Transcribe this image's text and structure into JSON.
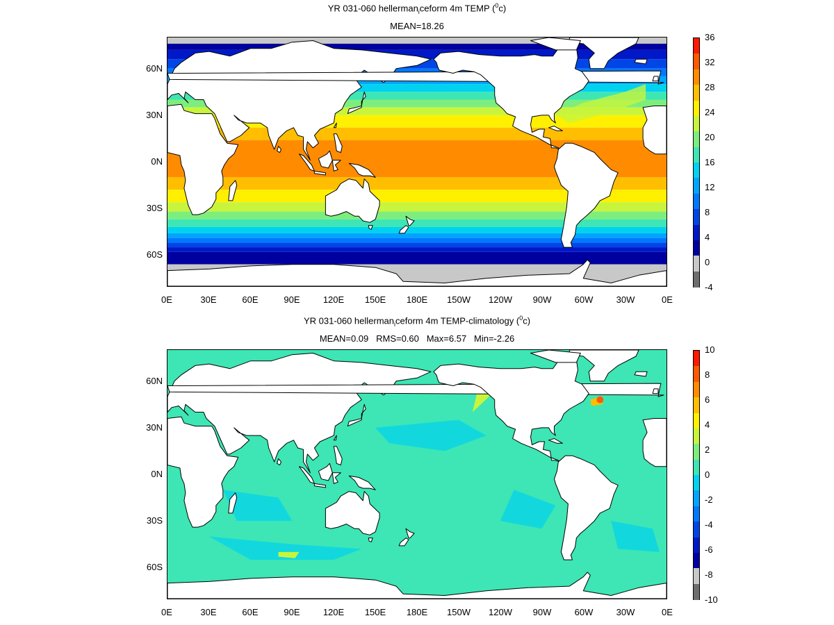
{
  "panels": [
    {
      "id": "top",
      "title_main": "YR 031-060 hellerman",
      "title_sub": "i",
      "title_rest": "ceform 4m TEMP (",
      "title_sup": "0",
      "title_unit": "c)",
      "subtitle": "MEAN=18.26",
      "colorbar": {
        "labels": [
          "36",
          "32",
          "28",
          "24",
          "20",
          "16",
          "12",
          "8",
          "4",
          "0",
          "-4"
        ],
        "colors": [
          "#ff1a00",
          "#ff5a00",
          "#ff8c00",
          "#ffbe00",
          "#fff000",
          "#c8f53c",
          "#7dee7d",
          "#3de6b4",
          "#00d2f0",
          "#00a5ff",
          "#0078ff",
          "#0046e6",
          "#0019c8",
          "#0000a0",
          "#c8c8c8",
          "#6e6e6e"
        ]
      },
      "map": {
        "ocean_field": "sst",
        "grey_ice_north": true,
        "grey_ice_south": true
      }
    },
    {
      "id": "bottom",
      "title_main": "YR 031-060 hellerman",
      "title_sub": "i",
      "title_rest": "ceform 4m TEMP-climatology (",
      "title_sup": "0",
      "title_unit": "c)",
      "subtitle": "MEAN=0.09   RMS=0.60   Max=6.57   Min=-2.26",
      "colorbar": {
        "labels": [
          "10",
          "8",
          "6",
          "4",
          "2",
          "0",
          "-2",
          "-4",
          "-6",
          "-8",
          "-10"
        ],
        "colors": [
          "#ff1a00",
          "#ff5a00",
          "#ff8c00",
          "#ffbe00",
          "#fff000",
          "#c8f53c",
          "#7dee7d",
          "#3de6b4",
          "#00d2f0",
          "#00a5ff",
          "#0078ff",
          "#0046e6",
          "#0019c8",
          "#0000a0",
          "#c8c8c8",
          "#6e6e6e"
        ]
      },
      "map": {
        "ocean_field": "anomaly",
        "grey_ice_north": false,
        "grey_ice_south": false
      }
    }
  ],
  "lat_ticks": [
    "60N",
    "30N",
    "0N",
    "30S",
    "60S"
  ],
  "lon_ticks": [
    "0E",
    "30E",
    "60E",
    "90E",
    "120E",
    "150E",
    "180E",
    "150W",
    "120W",
    "90W",
    "60W",
    "30W",
    "0E"
  ]
}
